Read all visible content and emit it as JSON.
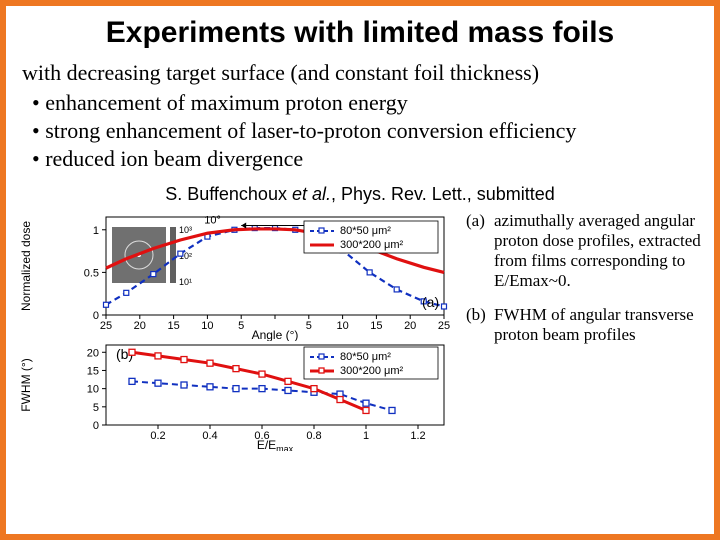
{
  "title": "Experiments with limited mass foils",
  "lead": "with decreasing target surface (and constant foil thickness)",
  "bullets": [
    "enhancement of maximum proton energy",
    "strong enhancement of laser-to-proton conversion efficiency",
    "reduced ion beam divergence"
  ],
  "citation": {
    "author": "S. Buffenchoux",
    "etal": "et al.",
    "rest": ", Phys. Rev. Lett., submitted"
  },
  "captions": [
    {
      "label": "(a)",
      "text": "azimuthally averaged angular proton dose profiles, extracted from films corresponding to E/Emax~0."
    },
    {
      "label": "(b)",
      "text": "FWHM of angular transverse proton beam profiles"
    }
  ],
  "chart_a": {
    "type": "line",
    "panel_label": "(a)",
    "xlabel": "Angle (°)",
    "ylabel": "Normalized dose",
    "xlim": [
      -25,
      25
    ],
    "ylim": [
      0,
      1.15
    ],
    "xticks": [
      -25,
      -20,
      -15,
      -10,
      -5,
      0,
      5,
      10,
      15,
      20,
      25
    ],
    "xtick_labels": [
      "25",
      "20",
      "15",
      "10",
      "5",
      "",
      "5",
      "10",
      "15",
      "20",
      "25"
    ],
    "yticks": [
      0,
      0.5,
      1
    ],
    "series": [
      {
        "name": "80*50 μm²",
        "color": "#1030c0",
        "dash": "6 4",
        "width": 2.2,
        "marker": "square",
        "x": [
          -25,
          -22,
          -18,
          -14,
          -10,
          -6,
          -3,
          0,
          3,
          6,
          10,
          14,
          18,
          22,
          25
        ],
        "y": [
          0.12,
          0.26,
          0.48,
          0.72,
          0.92,
          1.0,
          1.02,
          1.02,
          1.0,
          0.94,
          0.76,
          0.5,
          0.3,
          0.16,
          0.1
        ]
      },
      {
        "name": "300*200 μm²",
        "color": "#e01010",
        "dash": null,
        "width": 3.2,
        "marker": null,
        "x": [
          -25,
          -22,
          -18,
          -14,
          -10,
          -6,
          -3,
          0,
          3,
          6,
          10,
          14,
          18,
          22,
          25
        ],
        "y": [
          0.55,
          0.66,
          0.78,
          0.88,
          0.96,
          1.0,
          1.01,
          1.01,
          1.0,
          0.96,
          0.88,
          0.78,
          0.66,
          0.56,
          0.5
        ]
      }
    ],
    "fwhm_arrow": {
      "angle": 10,
      "y": 0.98,
      "label": "10°"
    },
    "inset": {
      "title": "",
      "bg": "#808080",
      "colorbar": {
        "ticks": [
          "10³",
          "10²",
          "10¹"
        ]
      }
    }
  },
  "chart_b": {
    "type": "line",
    "panel_label": "(b)",
    "xlabel": "E/E",
    "xlabel_sub": "max",
    "ylabel": "FWHM (°)",
    "xlim": [
      0,
      1.3
    ],
    "ylim": [
      0,
      22
    ],
    "xticks": [
      0.2,
      0.4,
      0.6,
      0.8,
      1.0,
      1.2
    ],
    "yticks": [
      0,
      5,
      10,
      15,
      20
    ],
    "series": [
      {
        "name": "80*50 μm²",
        "color": "#1030c0",
        "dash": "6 4",
        "width": 2.0,
        "marker": "square",
        "x": [
          0.1,
          0.2,
          0.3,
          0.4,
          0.5,
          0.6,
          0.7,
          0.8,
          0.9,
          1.0,
          1.1
        ],
        "y": [
          12,
          11.5,
          11,
          10.5,
          10,
          10,
          9.5,
          9,
          8.5,
          6,
          4
        ]
      },
      {
        "name": "300*200 μm²",
        "color": "#e01010",
        "dash": null,
        "width": 3.0,
        "marker": "square",
        "x": [
          0.1,
          0.2,
          0.3,
          0.4,
          0.5,
          0.6,
          0.7,
          0.8,
          0.9,
          1.0
        ],
        "y": [
          20,
          19,
          18,
          17,
          15.5,
          14,
          12,
          10,
          7,
          4
        ]
      }
    ]
  },
  "colors": {
    "border": "#ee7722",
    "blue": "#1030c0",
    "red": "#e01010",
    "text": "#000000",
    "bg": "#ffffff"
  },
  "fontsizes": {
    "title": 30,
    "body": 22,
    "citation": 18,
    "caption": 17,
    "axis": 12,
    "legend": 12
  }
}
